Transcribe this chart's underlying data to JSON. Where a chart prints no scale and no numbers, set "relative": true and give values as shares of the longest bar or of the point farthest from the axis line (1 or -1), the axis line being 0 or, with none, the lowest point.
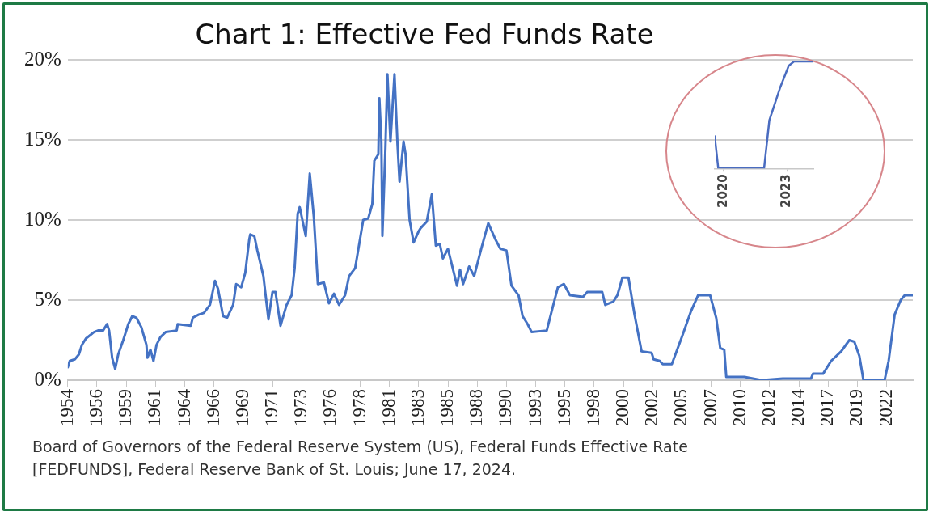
{
  "chart_data": [
    {
      "type": "line",
      "title": "Chart 1: Effective Fed Funds Rate",
      "annotations": [
        "Board of Governors of the Federal Reserve System (US), Federal Funds Effective Rate [FEDFUNDS], Federal Reserve Bank of St. Louis; June 17, 2024."
      ],
      "x": [
        "1954-07",
        "1954-09",
        "1955-02",
        "1955-06",
        "1955-09",
        "1956-01",
        "1956-09",
        "1957-01",
        "1957-06",
        "1957-10",
        "1957-12",
        "1958-03",
        "1958-06",
        "1958-09",
        "1959-02",
        "1959-07",
        "1959-11",
        "1960-03",
        "1960-08",
        "1961-01",
        "1961-02",
        "1961-05",
        "1961-08",
        "1961-11",
        "1962-03",
        "1962-08",
        "1963-07",
        "1963-08",
        "1964-09",
        "1964-11",
        "1965-05",
        "1965-10",
        "1966-04",
        "1966-09",
        "1966-12",
        "1967-05",
        "1967-09",
        "1968-03",
        "1968-06",
        "1968-11",
        "1969-03",
        "1969-07",
        "1969-08",
        "1969-12",
        "1970-03",
        "1970-09",
        "1971-02",
        "1971-06",
        "1971-09",
        "1972-02",
        "1972-08",
        "1973-01",
        "1973-04",
        "1973-07",
        "1973-09",
        "1973-12",
        "1974-03",
        "1974-07",
        "1974-11",
        "1975-03",
        "1975-09",
        "1976-02",
        "1976-07",
        "1976-12",
        "1977-06",
        "1977-10",
        "1978-04",
        "1978-12",
        "1979-05",
        "1979-09",
        "1979-11",
        "1980-03",
        "1980-04",
        "1980-06",
        "1980-07",
        "1980-10",
        "1980-12",
        "1981-03",
        "1981-07",
        "1981-10",
        "1981-12",
        "1982-04",
        "1982-06",
        "1982-10",
        "1983-02",
        "1983-07",
        "1983-09",
        "1984-03",
        "1984-08",
        "1984-12",
        "1985-04",
        "1985-07",
        "1985-12",
        "1986-09",
        "1986-12",
        "1987-03",
        "1987-09",
        "1988-02",
        "1988-09",
        "1989-04",
        "1989-11",
        "1990-04",
        "1990-10",
        "1991-03",
        "1991-10",
        "1992-02",
        "1992-07",
        "1992-11",
        "1994-02",
        "1994-06",
        "1995-01",
        "1995-07",
        "1996-01",
        "1997-02",
        "1997-06",
        "1998-09",
        "1998-12",
        "1999-08",
        "1999-12",
        "2000-05",
        "2000-11",
        "2001-05",
        "2001-12",
        "2002-10",
        "2002-12",
        "2003-06",
        "2003-09",
        "2004-06",
        "2005-04",
        "2006-01",
        "2006-08",
        "2007-08",
        "2008-02",
        "2008-06",
        "2008-10",
        "2008-12",
        "2009-07",
        "2010-06",
        "2011-11",
        "2013-08",
        "2015-12",
        "2016-02",
        "2016-12",
        "2017-08",
        "2018-06",
        "2019-02",
        "2019-07",
        "2019-12",
        "2020-04",
        "2022-01",
        "2022-05",
        "2022-11",
        "2023-05",
        "2023-09",
        "2024-05"
      ],
      "series": [
        {
          "color": "#4472c4",
          "values": [
            0.8,
            1.2,
            1.3,
            1.6,
            2.2,
            2.6,
            3.0,
            3.1,
            3.1,
            3.5,
            3.1,
            1.4,
            0.7,
            1.6,
            2.5,
            3.5,
            4.0,
            3.9,
            3.3,
            2.2,
            1.4,
            1.9,
            1.2,
            2.2,
            2.7,
            3.0,
            3.1,
            3.5,
            3.4,
            3.9,
            4.1,
            4.2,
            4.7,
            6.2,
            5.7,
            4.0,
            3.9,
            4.7,
            6.0,
            5.8,
            6.7,
            8.8,
            9.1,
            9.0,
            8.1,
            6.5,
            3.8,
            5.5,
            5.5,
            3.4,
            4.7,
            5.3,
            7.0,
            10.4,
            10.8,
            9.9,
            9.0,
            12.9,
            10.2,
            6.0,
            6.1,
            4.8,
            5.4,
            4.7,
            5.3,
            6.5,
            7.0,
            10.0,
            10.1,
            11.0,
            13.7,
            14.1,
            17.6,
            14.9,
            9.0,
            14.5,
            19.1,
            14.9,
            19.1,
            14.7,
            12.4,
            14.9,
            14.1,
            10.0,
            8.6,
            9.3,
            9.5,
            9.9,
            11.6,
            8.4,
            8.5,
            7.6,
            8.2,
            5.9,
            6.9,
            6.0,
            7.1,
            6.5,
            8.2,
            9.8,
            8.8,
            8.2,
            8.1,
            5.9,
            5.3,
            4.0,
            3.5,
            3.0,
            3.1,
            4.1,
            5.8,
            6.0,
            5.3,
            5.2,
            5.5,
            5.5,
            4.7,
            4.9,
            5.3,
            6.4,
            6.4,
            4.1,
            1.8,
            1.7,
            1.3,
            1.2,
            1.0,
            1.0,
            2.7,
            4.3,
            5.3,
            5.3,
            3.9,
            2.0,
            1.9,
            0.2,
            0.2,
            0.2,
            0.0,
            0.1,
            0.1,
            0.4,
            0.4,
            1.2,
            1.8,
            2.5,
            2.4,
            1.5,
            0.0,
            0.0,
            1.2,
            4.1,
            5.0,
            5.3,
            5.3
          ]
        }
      ],
      "xlim": [
        "1954-07",
        "2024-05"
      ],
      "xticks": [
        {
          "value": "1954-07",
          "label": "1954"
        },
        {
          "value": "1956-12",
          "label": "1956"
        },
        {
          "value": "1959-05",
          "label": "1959"
        },
        {
          "value": "1961-10",
          "label": "1961"
        },
        {
          "value": "1964-03",
          "label": "1964"
        },
        {
          "value": "1966-08",
          "label": "1966"
        },
        {
          "value": "1969-01",
          "label": "1969"
        },
        {
          "value": "1971-06",
          "label": "1971"
        },
        {
          "value": "1973-11",
          "label": "1973"
        },
        {
          "value": "1976-04",
          "label": "1976"
        },
        {
          "value": "1978-09",
          "label": "1978"
        },
        {
          "value": "1981-02",
          "label": "1981"
        },
        {
          "value": "1983-07",
          "label": "1983"
        },
        {
          "value": "1985-12",
          "label": "1985"
        },
        {
          "value": "1988-05",
          "label": "1988"
        },
        {
          "value": "1990-10",
          "label": "1990"
        },
        {
          "value": "1993-03",
          "label": "1993"
        },
        {
          "value": "1995-08",
          "label": "1995"
        },
        {
          "value": "1998-01",
          "label": "1998"
        },
        {
          "value": "2000-06",
          "label": "2000"
        },
        {
          "value": "2002-11",
          "label": "2002"
        },
        {
          "value": "2005-04",
          "label": "2005"
        },
        {
          "value": "2007-09",
          "label": "2007"
        },
        {
          "value": "2010-02",
          "label": "2010"
        },
        {
          "value": "2012-07",
          "label": "2012"
        },
        {
          "value": "2014-12",
          "label": "2014"
        },
        {
          "value": "2017-05",
          "label": "2017"
        },
        {
          "value": "2019-10",
          "label": "2019"
        },
        {
          "value": "2022-03",
          "label": "2022"
        }
      ],
      "ylim": [
        0,
        20
      ],
      "yticks": [
        {
          "value": 0,
          "label": "0%"
        },
        {
          "value": 5,
          "label": "5%"
        },
        {
          "value": 10,
          "label": "10%"
        },
        {
          "value": 15,
          "label": "15%"
        },
        {
          "value": 20,
          "label": "20%"
        }
      ],
      "grid": "y",
      "marker": "none",
      "line_style": "solid"
    },
    {
      "type": "line",
      "relative": true,
      "x": [
        "2019-08",
        "2019-10",
        "2021-12",
        "2022-03",
        "2022-09",
        "2023-02",
        "2023-05",
        "2024-04"
      ],
      "series": [
        {
          "color": "#4a6cc0",
          "values": [
            0.3,
            0,
            0,
            0.45,
            0.75,
            0.96,
            1,
            1
          ]
        }
      ],
      "xlim": [
        "2019-08",
        "2024-04"
      ],
      "xticks": [
        {
          "value": "2020-01",
          "label": "2020"
        },
        {
          "value": "2023-01",
          "label": "2023"
        }
      ],
      "grid": false,
      "marker": "none",
      "line_style": "solid"
    }
  ]
}
